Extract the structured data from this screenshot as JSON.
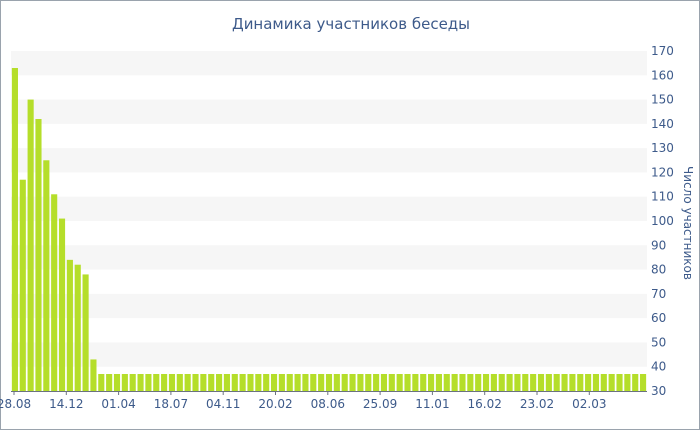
{
  "chart_data": {
    "type": "bar",
    "title": "Динамика участников беседы",
    "ylabel": "Число участников",
    "xlabel": "",
    "ylim": [
      30,
      170
    ],
    "y_ticks": [
      30,
      40,
      50,
      60,
      70,
      80,
      90,
      100,
      110,
      120,
      130,
      140,
      150,
      160,
      170
    ],
    "x_tick_labels": [
      "28.08",
      "14.12",
      "01.04",
      "18.07",
      "04.11",
      "20.02",
      "08.06",
      "25.09",
      "11.01",
      "16.02",
      "23.02",
      "02.03"
    ],
    "values": [
      163,
      117,
      150,
      142,
      125,
      111,
      101,
      84,
      82,
      78,
      43,
      37,
      37,
      37,
      37,
      37,
      37,
      37,
      37,
      37,
      37,
      37,
      37,
      37,
      37,
      37,
      37,
      37,
      37,
      37,
      37,
      37,
      37,
      37,
      37,
      37,
      37,
      37,
      37,
      37,
      37,
      37,
      37,
      37,
      37,
      37,
      37,
      37,
      37,
      37,
      37,
      37,
      37,
      37,
      37,
      37,
      37,
      37,
      37,
      37,
      37,
      37,
      37,
      37,
      37,
      37,
      37,
      37,
      37,
      37,
      37,
      37,
      37,
      37,
      37,
      37,
      37,
      37,
      37,
      37,
      37
    ],
    "bar_color": "#b5de2a",
    "band_color": "#f6f6f6",
    "text_color": "#3d5a8a",
    "grid": true,
    "y_axis_side": "right"
  }
}
